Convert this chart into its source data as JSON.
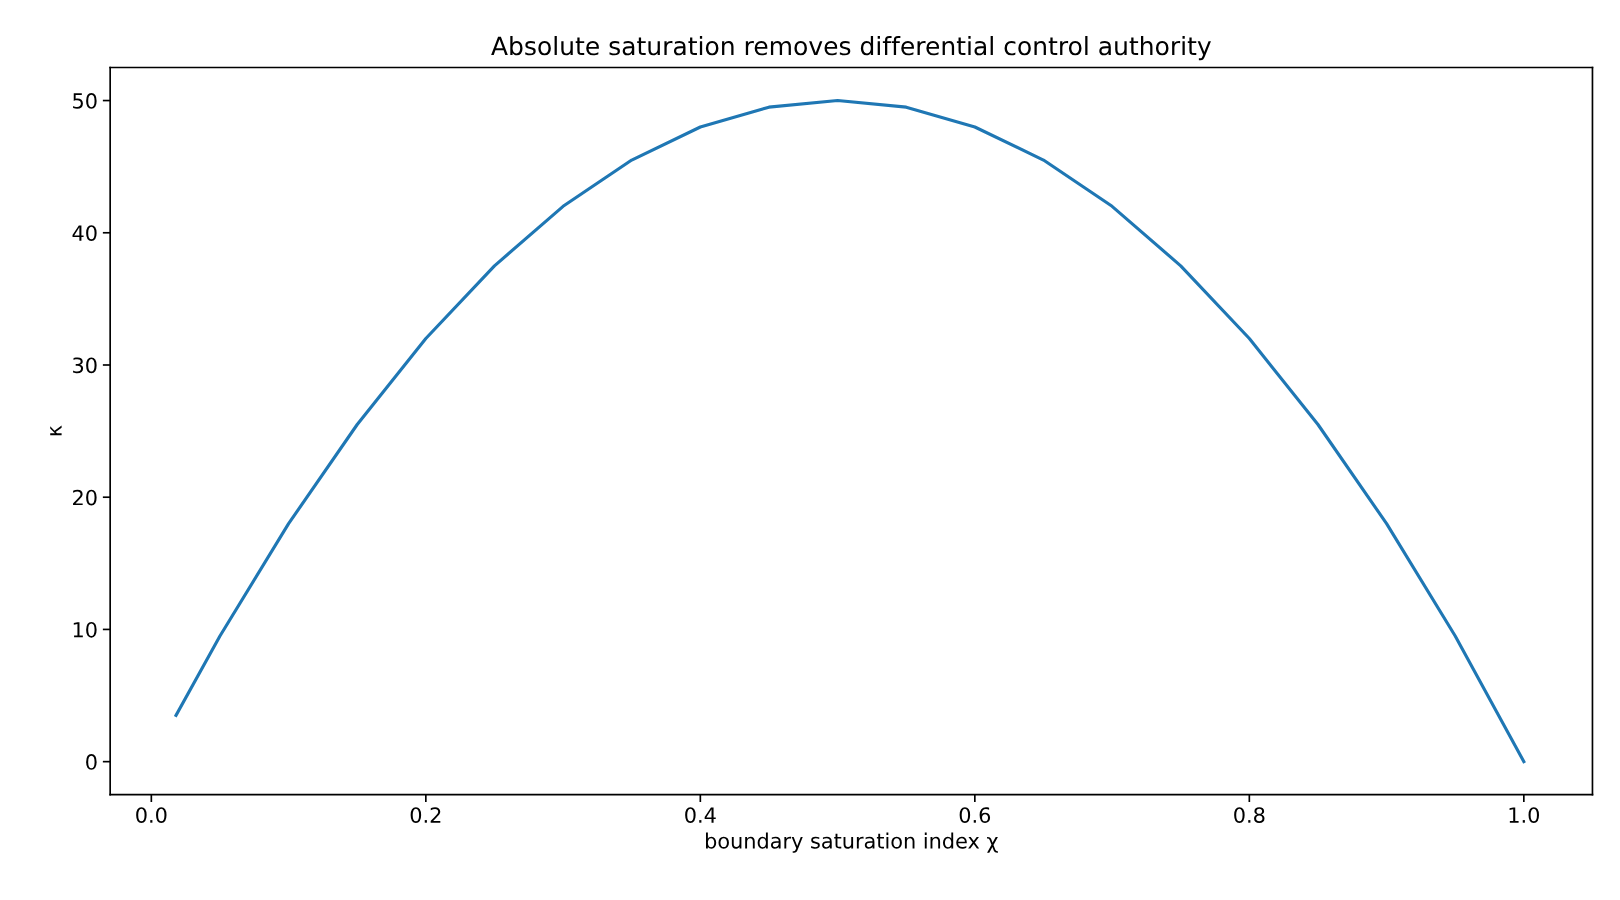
{
  "chart_data": {
    "type": "line",
    "title": "Absolute saturation removes differential control authority",
    "xlabel": "boundary saturation index χ",
    "ylabel": "κ",
    "x": [
      0.018,
      0.05,
      0.1,
      0.15,
      0.2,
      0.25,
      0.3,
      0.35,
      0.4,
      0.45,
      0.5,
      0.55,
      0.6,
      0.65,
      0.7,
      0.75,
      0.8,
      0.85,
      0.9,
      0.95,
      1.0
    ],
    "series": [
      {
        "color": "#1f77b4",
        "values": [
          3.5,
          9.5,
          18,
          25.5,
          32,
          37.5,
          42,
          45.5,
          48,
          49.5,
          50,
          49.5,
          48,
          45.5,
          42,
          37.5,
          32,
          25.5,
          18,
          9.5,
          0
        ]
      }
    ],
    "xlim": [
      -0.03,
      1.05
    ],
    "ylim": [
      -2.5,
      52.5
    ],
    "xticks": [
      {
        "value": 0,
        "label": "0.0"
      },
      0.2,
      0.4,
      0.6,
      0.8,
      {
        "value": 1,
        "label": "1.0"
      }
    ],
    "yticks": [
      0,
      10,
      20,
      30,
      40,
      50
    ],
    "grid": false,
    "legend": false,
    "marker": "none",
    "line_style": "solid"
  }
}
